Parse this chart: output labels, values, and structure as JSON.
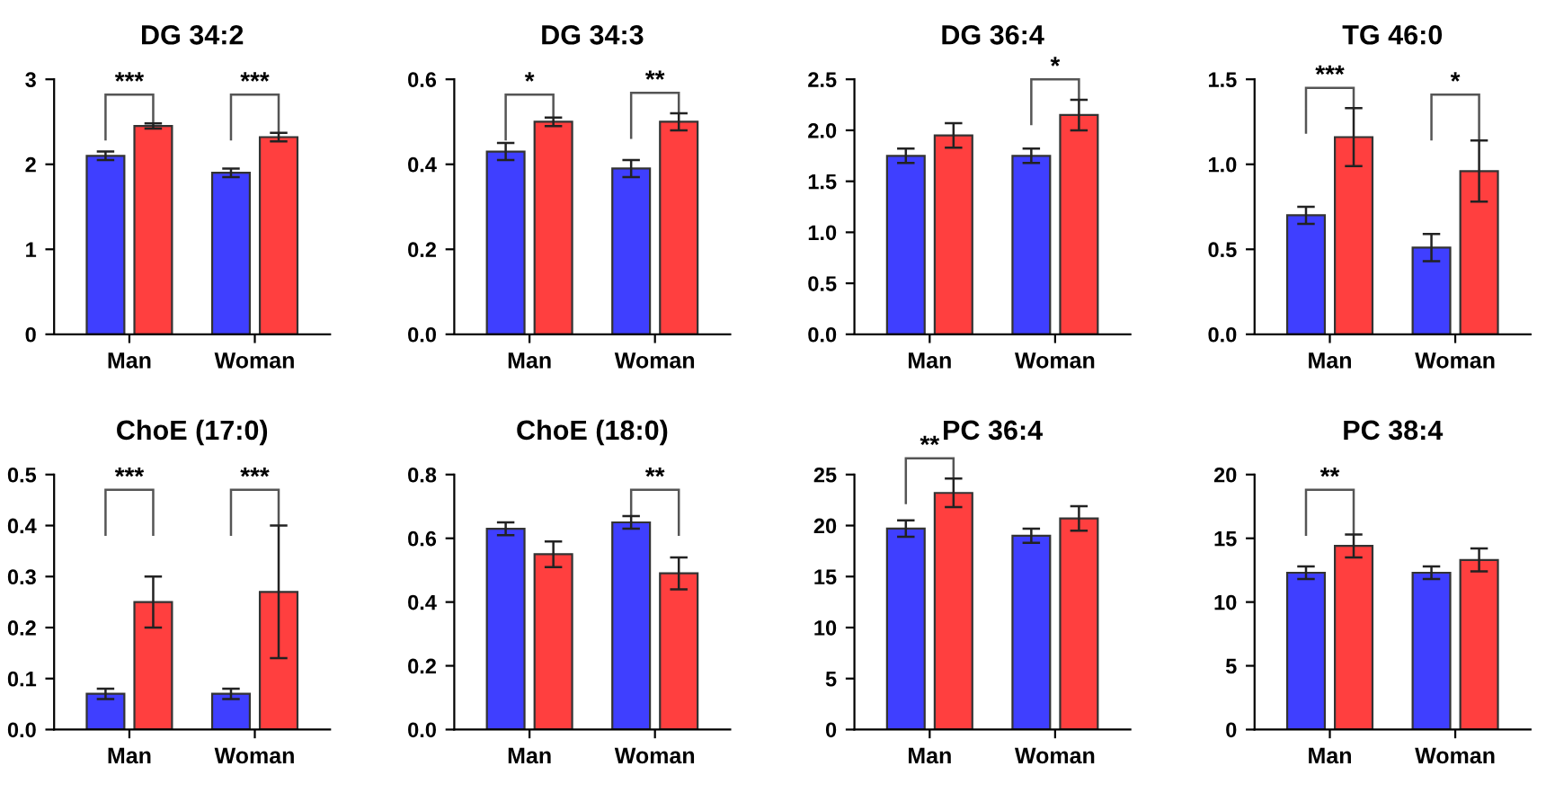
{
  "chart_data": [
    {
      "type": "bar",
      "title": "DG 34:2",
      "categories": [
        "Man",
        "Woman"
      ],
      "ylim": [
        0,
        3
      ],
      "yticks": [
        0,
        1,
        2,
        3
      ],
      "grid": false,
      "legend": false,
      "series": [
        {
          "color": "#3f3fff",
          "values": [
            2.1,
            1.9
          ],
          "errors": [
            0.05,
            0.05
          ]
        },
        {
          "color": "#ff3f3f",
          "values": [
            2.45,
            2.32
          ],
          "errors": [
            0.03,
            0.05
          ]
        }
      ],
      "annotations": [
        "***",
        "***"
      ]
    },
    {
      "type": "bar",
      "title": "DG 34:3",
      "categories": [
        "Man",
        "Woman"
      ],
      "ylim": [
        0,
        0.6
      ],
      "yticks": [
        {
          "value": 0,
          "label": "0.0"
        },
        0.2,
        0.4,
        0.6
      ],
      "grid": false,
      "legend": false,
      "series": [
        {
          "color": "#3f3fff",
          "values": [
            0.43,
            0.39
          ],
          "errors": [
            0.02,
            0.02
          ]
        },
        {
          "color": "#ff3f3f",
          "values": [
            0.5,
            0.5
          ],
          "errors": [
            0.01,
            0.02
          ]
        }
      ],
      "annotations": [
        "*",
        "**"
      ]
    },
    {
      "type": "bar",
      "title": "DG 36:4",
      "categories": [
        "Man",
        "Woman"
      ],
      "ylim": [
        0,
        2.5
      ],
      "yticks": [
        {
          "value": 0,
          "label": "0.0"
        },
        0.5,
        {
          "value": 1,
          "label": "1.0"
        },
        1.5,
        {
          "value": 2,
          "label": "2.0"
        },
        2.5
      ],
      "grid": false,
      "legend": false,
      "series": [
        {
          "color": "#3f3fff",
          "values": [
            1.75,
            1.75
          ],
          "errors": [
            0.07,
            0.07
          ]
        },
        {
          "color": "#ff3f3f",
          "values": [
            1.95,
            2.15
          ],
          "errors": [
            0.12,
            0.15
          ]
        }
      ],
      "annotations": [
        null,
        "*"
      ]
    },
    {
      "type": "bar",
      "title": "TG 46:0",
      "categories": [
        "Man",
        "Woman"
      ],
      "ylim": [
        0,
        1.5
      ],
      "yticks": [
        {
          "value": 0,
          "label": "0.0"
        },
        0.5,
        {
          "value": 1,
          "label": "1.0"
        },
        1.5
      ],
      "grid": false,
      "legend": false,
      "series": [
        {
          "color": "#3f3fff",
          "values": [
            0.7,
            0.51
          ],
          "errors": [
            0.05,
            0.08
          ]
        },
        {
          "color": "#ff3f3f",
          "values": [
            1.16,
            0.96
          ],
          "errors": [
            0.17,
            0.18
          ]
        }
      ],
      "annotations": [
        "***",
        "*"
      ]
    },
    {
      "type": "bar",
      "title": "ChoE (17:0)",
      "categories": [
        "Man",
        "Woman"
      ],
      "ylim": [
        0,
        0.5
      ],
      "yticks": [
        {
          "value": 0,
          "label": "0.0"
        },
        0.1,
        0.2,
        0.3,
        0.4,
        0.5
      ],
      "grid": false,
      "legend": false,
      "series": [
        {
          "color": "#3f3fff",
          "values": [
            0.07,
            0.07
          ],
          "errors": [
            0.01,
            0.01
          ]
        },
        {
          "color": "#ff3f3f",
          "values": [
            0.25,
            0.27
          ],
          "errors": [
            0.05,
            0.13
          ]
        }
      ],
      "annotations": [
        "***",
        "***"
      ]
    },
    {
      "type": "bar",
      "title": "ChoE (18:0)",
      "categories": [
        "Man",
        "Woman"
      ],
      "ylim": [
        0,
        0.8
      ],
      "yticks": [
        {
          "value": 0,
          "label": "0.0"
        },
        0.2,
        0.4,
        0.6,
        0.8
      ],
      "grid": false,
      "legend": false,
      "series": [
        {
          "color": "#3f3fff",
          "values": [
            0.63,
            0.65
          ],
          "errors": [
            0.02,
            0.02
          ]
        },
        {
          "color": "#ff3f3f",
          "values": [
            0.55,
            0.49
          ],
          "errors": [
            0.04,
            0.05
          ]
        }
      ],
      "annotations": [
        null,
        "**"
      ]
    },
    {
      "type": "bar",
      "title": "PC 36:4",
      "categories": [
        "Man",
        "Woman"
      ],
      "ylim": [
        0,
        25
      ],
      "yticks": [
        0,
        5,
        10,
        15,
        20,
        25
      ],
      "grid": false,
      "legend": false,
      "series": [
        {
          "color": "#3f3fff",
          "values": [
            19.7,
            19.0
          ],
          "errors": [
            0.8,
            0.7
          ]
        },
        {
          "color": "#ff3f3f",
          "values": [
            23.2,
            20.7
          ],
          "errors": [
            1.4,
            1.2
          ]
        }
      ],
      "annotations": [
        "**"
      ]
    },
    {
      "type": "bar",
      "title": "PC 38:4",
      "categories": [
        "Man",
        "Woman"
      ],
      "ylim": [
        0,
        20
      ],
      "yticks": [
        0,
        5,
        10,
        15,
        20
      ],
      "grid": false,
      "legend": false,
      "series": [
        {
          "color": "#3f3fff",
          "values": [
            12.3,
            12.3
          ],
          "errors": [
            0.5,
            0.5
          ]
        },
        {
          "color": "#ff3f3f",
          "values": [
            14.4,
            13.3
          ],
          "errors": [
            0.9,
            0.9
          ]
        }
      ],
      "annotations": [
        "**"
      ]
    }
  ]
}
